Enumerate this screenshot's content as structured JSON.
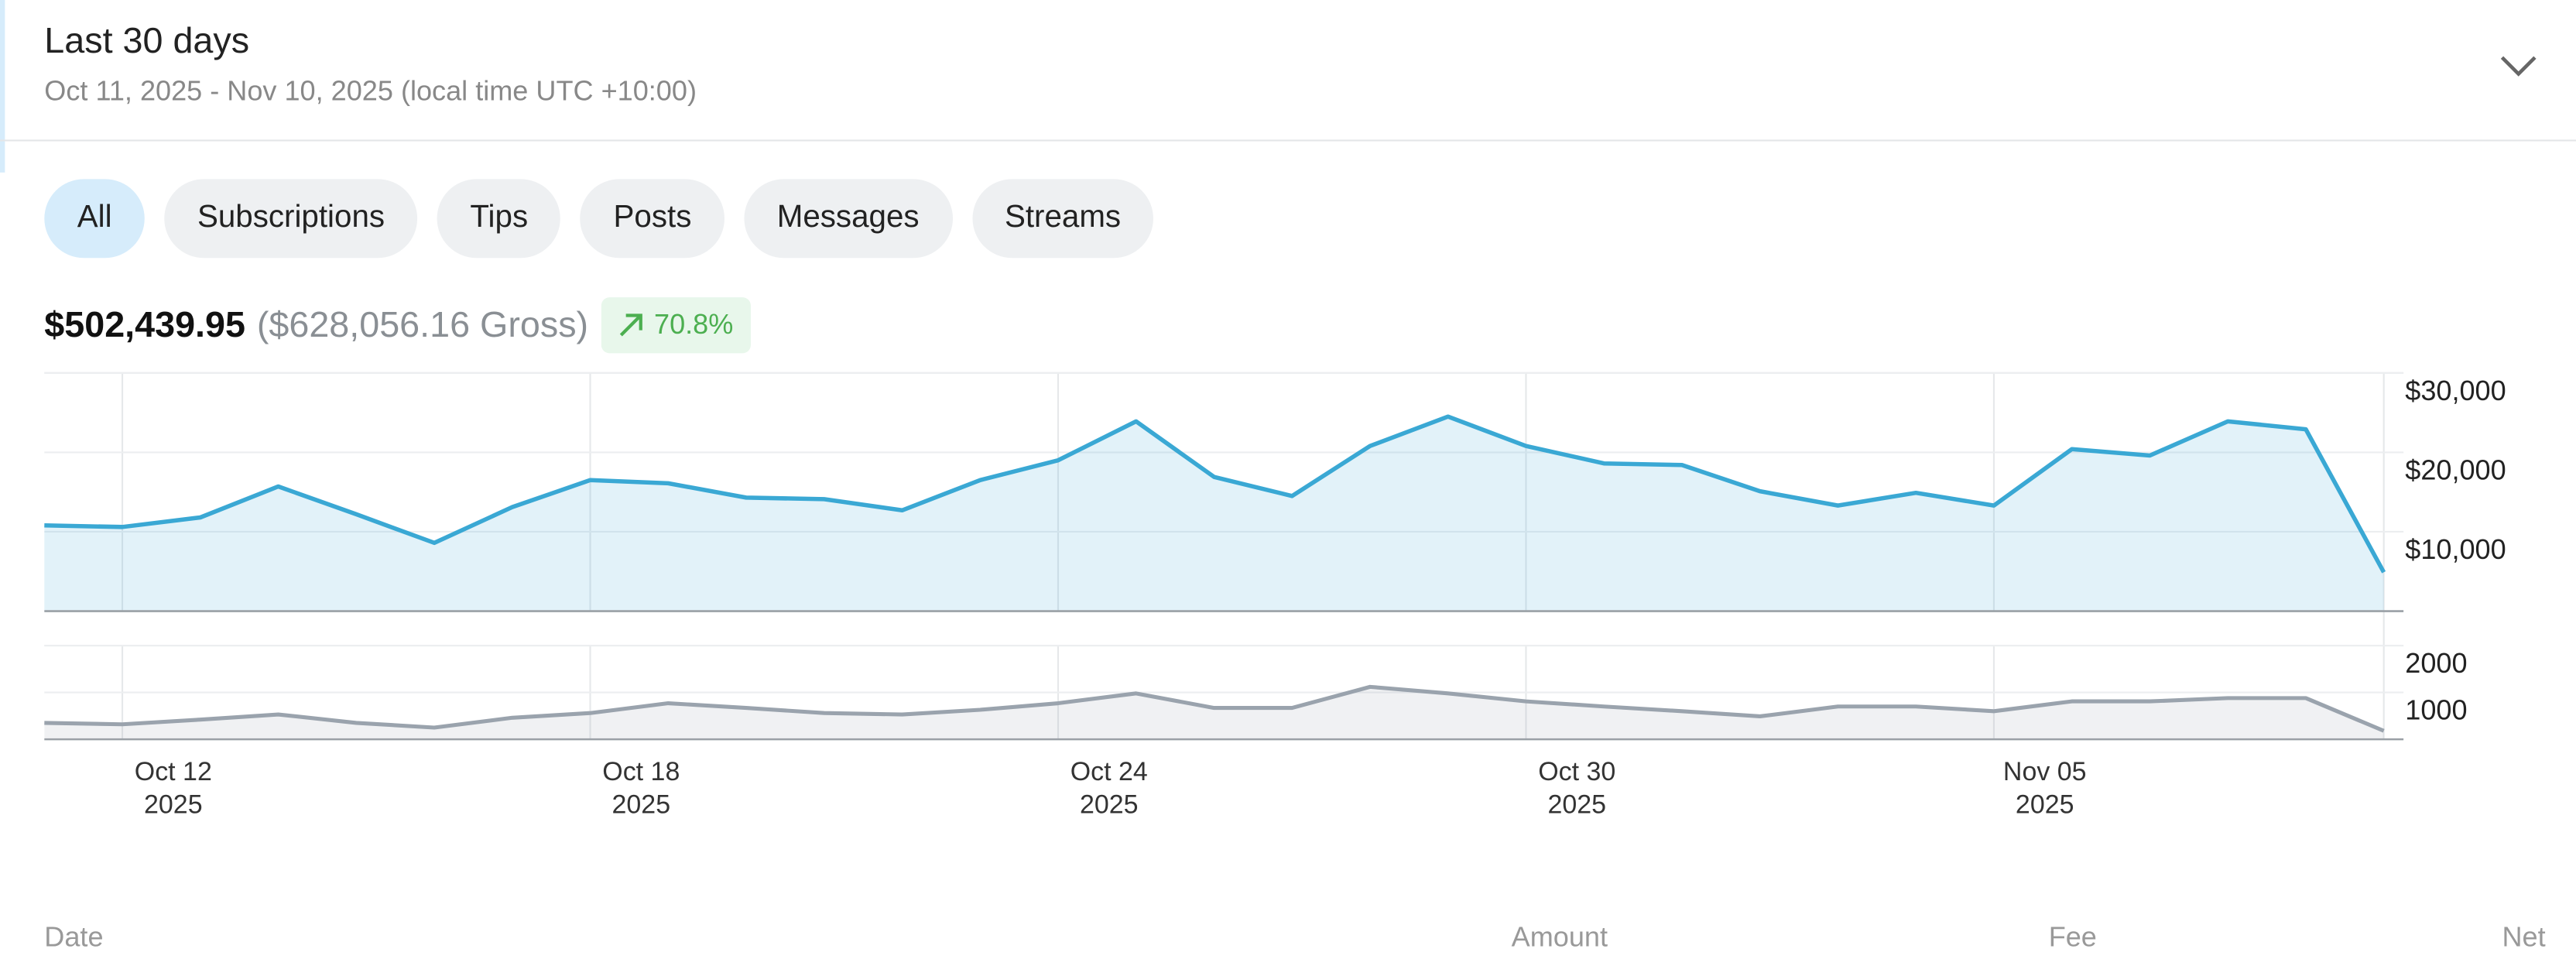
{
  "header": {
    "title": "Last 30 days",
    "subtitle": "Oct 11, 2025 - Nov 10, 2025 (local time UTC +10:00)"
  },
  "tabs": [
    "All",
    "Subscriptions",
    "Tips",
    "Posts",
    "Messages",
    "Streams"
  ],
  "summary": {
    "net": "$502,439.95",
    "gross": "($628,056.16 Gross)",
    "change": "70.8%"
  },
  "chart_data": [
    {
      "type": "area",
      "x": [
        "2025-10-11",
        "2025-10-12",
        "2025-10-13",
        "2025-10-14",
        "2025-10-15",
        "2025-10-16",
        "2025-10-17",
        "2025-10-18",
        "2025-10-19",
        "2025-10-20",
        "2025-10-21",
        "2025-10-22",
        "2025-10-23",
        "2025-10-24",
        "2025-10-25",
        "2025-10-26",
        "2025-10-27",
        "2025-10-28",
        "2025-10-29",
        "2025-10-30",
        "2025-10-31",
        "2025-11-01",
        "2025-11-02",
        "2025-11-03",
        "2025-11-04",
        "2025-11-05",
        "2025-11-06",
        "2025-11-07",
        "2025-11-08",
        "2025-11-09",
        "2025-11-10"
      ],
      "xlim": [
        "2025-10-11",
        "2025-11-10"
      ],
      "series": [
        {
          "color": "#3aa8d4",
          "values": [
            10800,
            10600,
            11800,
            15700,
            12200,
            8600,
            13100,
            16500,
            16100,
            14300,
            14100,
            12700,
            16500,
            19000,
            23900,
            16900,
            14500,
            20800,
            24500,
            20800,
            18600,
            18400,
            15100,
            13300,
            14900,
            13300,
            20400,
            19600,
            23900,
            22900,
            4900
          ]
        }
      ],
      "ylim": [
        0,
        30000
      ],
      "yticks": [
        {
          "value": 10000,
          "label": "$10,000"
        },
        {
          "value": 20000,
          "label": "$20,000"
        },
        {
          "value": 30000,
          "label": "$30,000"
        }
      ],
      "grid": true
    },
    {
      "type": "area",
      "x": [
        "2025-10-11",
        "2025-10-12",
        "2025-10-13",
        "2025-10-14",
        "2025-10-15",
        "2025-10-16",
        "2025-10-17",
        "2025-10-18",
        "2025-10-19",
        "2025-10-20",
        "2025-10-21",
        "2025-10-22",
        "2025-10-23",
        "2025-10-24",
        "2025-10-25",
        "2025-10-26",
        "2025-10-27",
        "2025-10-28",
        "2025-10-29",
        "2025-10-30",
        "2025-10-31",
        "2025-11-01",
        "2025-11-02",
        "2025-11-03",
        "2025-11-04",
        "2025-11-05",
        "2025-11-06",
        "2025-11-07",
        "2025-11-08",
        "2025-11-09",
        "2025-11-10"
      ],
      "xlim": [
        "2025-10-11",
        "2025-11-10"
      ],
      "xticks": [
        {
          "value": "2025-10-12",
          "label": "Oct 12\n2025"
        },
        {
          "value": "2025-10-18",
          "label": "Oct 18\n2025"
        },
        {
          "value": "2025-10-24",
          "label": "Oct 24\n2025"
        },
        {
          "value": "2025-10-30",
          "label": "Oct 30\n2025"
        },
        {
          "value": "2025-11-05",
          "label": "Nov 05\n2025"
        }
      ],
      "series": [
        {
          "color": "#9aa3ad",
          "values": [
            350,
            320,
            420,
            530,
            350,
            250,
            460,
            560,
            770,
            670,
            560,
            530,
            630,
            770,
            980,
            670,
            670,
            1120,
            980,
            810,
            700,
            600,
            490,
            700,
            700,
            600,
            810,
            810,
            880,
            880,
            180
          ]
        }
      ],
      "ylim": [
        0,
        2000
      ],
      "yticks": [
        1000,
        2000
      ],
      "grid": true
    }
  ],
  "table": {
    "columns": [
      "Date",
      "Amount",
      "Fee",
      "Net"
    ]
  }
}
